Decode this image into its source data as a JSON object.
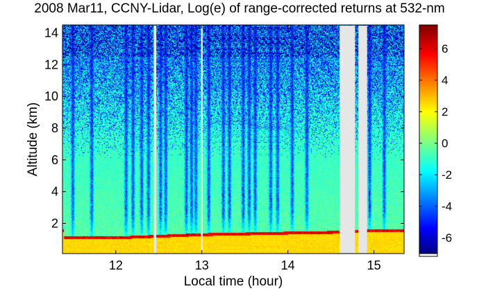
{
  "chart_data": {
    "type": "heatmap",
    "title": "2008 Mar11, CCNY-Lidar, Log(e) of range-corrected returns at 532-nm",
    "xlabel": "Local time (hour)",
    "ylabel": "Altitude (km)",
    "xlim": [
      11.38,
      15.35
    ],
    "ylim": [
      0.1,
      14.5
    ],
    "xticks": [
      12,
      13,
      14,
      15
    ],
    "yticks": [
      2,
      4,
      6,
      8,
      10,
      12,
      14
    ],
    "colorbar": {
      "range": [
        -7,
        7.5
      ],
      "ticks": [
        -6,
        -4,
        -2,
        0,
        2,
        4,
        6
      ],
      "colormap": "jet"
    },
    "data_gaps_hours": [
      [
        12.44,
        12.47
      ],
      [
        12.99,
        13.01
      ],
      [
        14.6,
        14.78
      ],
      [
        14.82,
        14.92
      ]
    ],
    "boundary_layer_top_km": [
      {
        "x": 11.4,
        "y": 1.1
      },
      {
        "x": 12.0,
        "y": 1.1
      },
      {
        "x": 12.5,
        "y": 1.2
      },
      {
        "x": 13.0,
        "y": 1.3
      },
      {
        "x": 13.5,
        "y": 1.35
      },
      {
        "x": 14.0,
        "y": 1.4
      },
      {
        "x": 14.6,
        "y": 1.45
      },
      {
        "x": 15.0,
        "y": 1.55
      },
      {
        "x": 15.35,
        "y": 1.55
      }
    ],
    "clear_air_columns_hours": [
      11.5,
      11.72,
      12.12,
      12.2,
      12.3,
      12.38,
      12.52,
      12.58,
      12.82,
      12.88,
      12.93,
      13.08,
      13.25,
      13.32,
      13.48,
      13.55,
      13.62,
      13.8,
      13.88,
      14.05,
      14.22,
      14.95,
      15.12
    ]
  }
}
